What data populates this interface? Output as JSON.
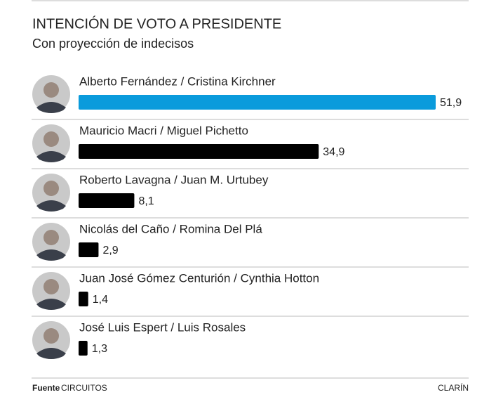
{
  "chart_data": {
    "type": "bar",
    "orientation": "horizontal",
    "title": "INTENCIÓN DE VOTO A PRESIDENTE",
    "subtitle": "Con proyección de indecisos",
    "categories": [
      "Alberto Fernández / Cristina Kirchner",
      "Mauricio Macri / Miguel Pichetto",
      "Roberto Lavagna / Juan M. Urtubey",
      "Nicolás del Caño / Romina Del Plá",
      "Juan José Gómez Centurión / Cynthia Hotton",
      "José Luis Espert / Luis Rosales"
    ],
    "values": [
      51.9,
      34.9,
      8.1,
      2.9,
      1.4,
      1.3
    ],
    "value_labels": [
      "51,9",
      "34,9",
      "8,1",
      "2,9",
      "1,4",
      "1,3"
    ],
    "colors": [
      "#0a9bdc",
      "#000000",
      "#000000",
      "#000000",
      "#000000",
      "#000000"
    ],
    "source_label": "Fuente",
    "source": "CIRCUITOS",
    "credit": "CLARÍN"
  }
}
